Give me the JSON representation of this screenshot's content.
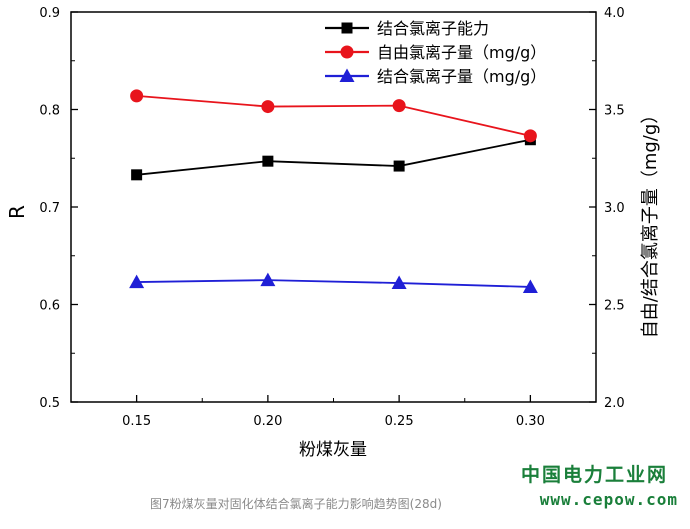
{
  "chart_data": {
    "type": "line",
    "x": [
      0.15,
      0.2,
      0.25,
      0.3
    ],
    "x_tick_labels": [
      "0.15",
      "0.20",
      "0.25",
      "0.30"
    ],
    "xlabel": "粉煤灰量",
    "xlim": [
      0.125,
      0.325
    ],
    "ylabel_left": "R",
    "ylim_left": [
      0.5,
      0.9
    ],
    "y_left_ticks": [
      "0.5",
      "0.6",
      "0.7",
      "0.8",
      "0.9"
    ],
    "ylabel_right": "自由/结合氯离子量（mg/g）",
    "ylim_right": [
      2.0,
      4.0
    ],
    "y_right_ticks": [
      "2.0",
      "2.5",
      "3.0",
      "3.5",
      "4.0"
    ],
    "legend_position": "top-right",
    "series": [
      {
        "name": "结合氯离子能力",
        "axis": "left",
        "color": "#000000",
        "marker": "square",
        "values": [
          0.733,
          0.747,
          0.742,
          0.769
        ]
      },
      {
        "name": "自由氯离子量（mg/g）",
        "axis": "right",
        "color": "#e8141c",
        "marker": "circle",
        "values": [
          3.57,
          3.515,
          3.52,
          3.365
        ]
      },
      {
        "name": "结合氯离子量（mg/g）",
        "axis": "right",
        "color": "#1f1fd6",
        "marker": "triangle",
        "values": [
          2.615,
          2.625,
          2.61,
          2.59
        ]
      }
    ]
  },
  "watermark": {
    "site_name": "中国电力工业网",
    "url": "www.cepow.com",
    "caption": "图7粉煤灰量对固化体结合氯离子能力影响趋势图(28d)"
  }
}
